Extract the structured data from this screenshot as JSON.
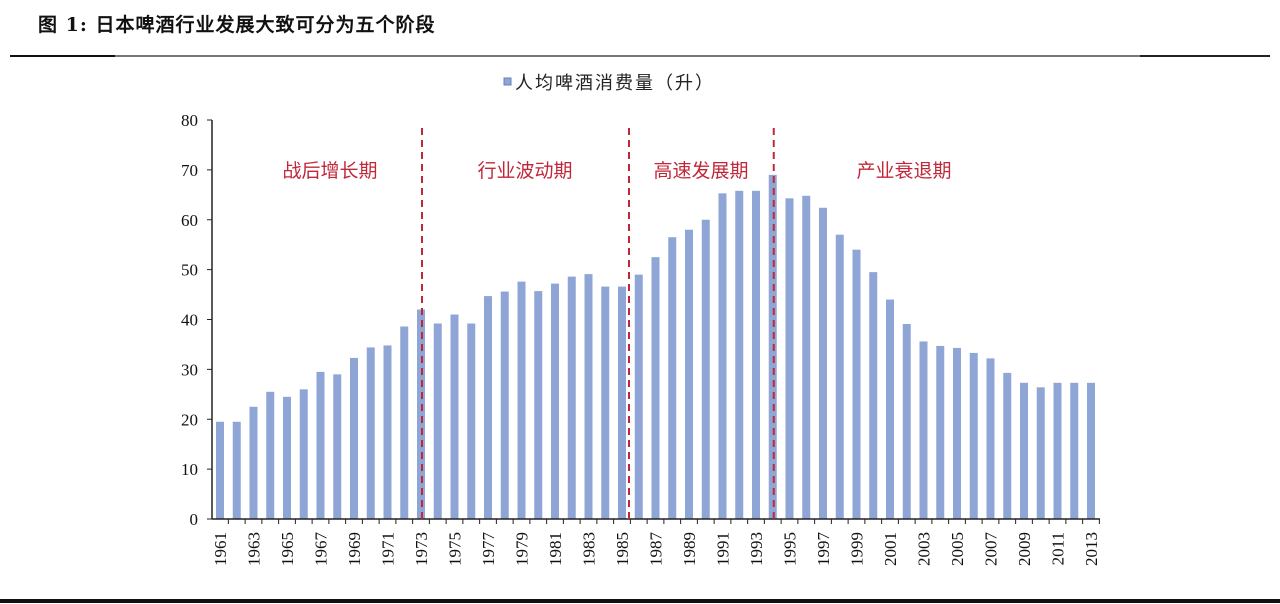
{
  "figure_title": "图 1:  日本啤酒行业发展大致可分为五个阶段",
  "chart_data": {
    "type": "bar",
    "title": "",
    "legend": {
      "entries": [
        "人均啤酒消费量（升）"
      ],
      "placement": "top"
    },
    "xlabel": "",
    "ylabel": "",
    "ylim": [
      0,
      80
    ],
    "yticks": [
      0,
      10,
      20,
      30,
      40,
      50,
      60,
      70,
      80
    ],
    "xtick_labels": [
      "1961",
      "1963",
      "1965",
      "1967",
      "1969",
      "1971",
      "1973",
      "1975",
      "1977",
      "1979",
      "1981",
      "1983",
      "1985",
      "1987",
      "1989",
      "1991",
      "1993",
      "1995",
      "1997",
      "1999",
      "2001",
      "2003",
      "2005",
      "2007",
      "2009",
      "2011",
      "2013"
    ],
    "grid": false,
    "bar_color": "#8fa5d6",
    "divider_color": "#c0283a",
    "categories": [
      1961,
      1962,
      1963,
      1964,
      1965,
      1966,
      1967,
      1968,
      1969,
      1970,
      1971,
      1972,
      1973,
      1974,
      1975,
      1976,
      1977,
      1978,
      1979,
      1980,
      1981,
      1982,
      1983,
      1984,
      1985,
      1986,
      1987,
      1988,
      1989,
      1990,
      1991,
      1992,
      1993,
      1994,
      1995,
      1996,
      1997,
      1998,
      1999,
      2000,
      2001,
      2002,
      2003,
      2004,
      2005,
      2006,
      2007,
      2008,
      2009,
      2010,
      2011,
      2012,
      2013
    ],
    "series": [
      {
        "name": "人均啤酒消费量（升）",
        "values": [
          19.5,
          19.5,
          22.5,
          25.5,
          24.5,
          26,
          29.5,
          29,
          32.3,
          34.4,
          34.8,
          38.6,
          42,
          39.2,
          41,
          39.2,
          44.7,
          45.6,
          47.6,
          45.7,
          47.2,
          48.6,
          49.1,
          46.6,
          46.6,
          49,
          52.5,
          56.5,
          58,
          60,
          65.3,
          65.8,
          65.8,
          69,
          64.3,
          64.8,
          62.4,
          57,
          54,
          49.5,
          44,
          39.1,
          35.6,
          34.7,
          34.3,
          33.3,
          32.2,
          29.3,
          27.3,
          26.4,
          27.3,
          27.3,
          27.3
        ]
      }
    ],
    "phase_dividers": [
      1973,
      1985,
      1994
    ],
    "annotations": [
      "战后增长期",
      "行业波动期",
      "高速发展期",
      "产业衰退期"
    ]
  }
}
